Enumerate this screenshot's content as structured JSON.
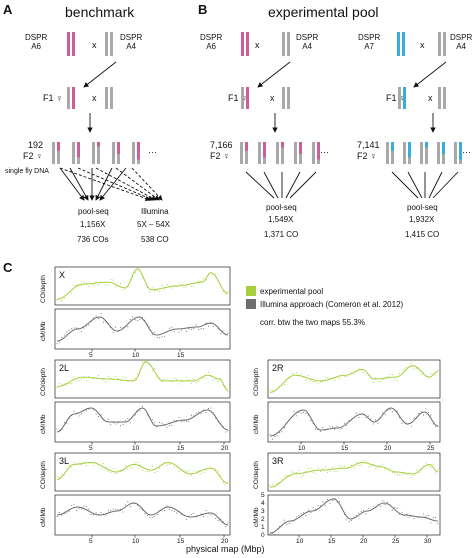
{
  "colors": {
    "dspr_a6": "#cc5e9a",
    "dspr_a7": "#35aedd",
    "gray": "#a9a9a9",
    "experimental": "#a8cf3c",
    "illumina": "#6d6d6d"
  },
  "panelA": {
    "letter": "A",
    "title": "benchmark",
    "p1": "DSPR\nA6",
    "cross": "x",
    "p2": "DSPR\nA4",
    "f1_label": "F1 ♀",
    "f1_cross": "x",
    "f2_count": "192",
    "f2_label": "F2 ♀",
    "dots": "···",
    "single_fly": "single fly DNA",
    "poolseq": {
      "name": "pool-seq",
      "coverage": "1,156X",
      "cos": "736 COs"
    },
    "illumina": {
      "name": "Illumina",
      "coverage": "5X – 54X",
      "cos": "538 CO"
    }
  },
  "panelB": {
    "letter": "B",
    "title": "experimental pool",
    "left": {
      "p1": "DSPR\nA6",
      "cross": "x",
      "p2": "DSPR\nA4",
      "f1_label": "F1 ♀",
      "f1_cross": "x",
      "f2_count": "7,166",
      "f2_label": "F2 ♀",
      "dots": "···",
      "poolseq": "pool-seq",
      "coverage": "1,549X",
      "cos": "1,371 CO"
    },
    "right": {
      "p1": "DSPR\nA7",
      "cross": "x",
      "p2": "DSPR\nA4",
      "f1_label": "F1 ♀",
      "f1_cross": "x",
      "f2_count": "7,141",
      "f2_label": "F2 ♀",
      "dots": "···",
      "poolseq": "pool-seq",
      "coverage": "1,932X",
      "cos": "1,415 CO"
    }
  },
  "panelC": {
    "letter": "C",
    "legend": {
      "experimental": "experimental pool",
      "illumina": "Illumina approach (Comeron et al. 2012)",
      "corr": "corr. btw the two maps 55.3%"
    },
    "ylab_top": "CO/depth",
    "ylab_bottom": "cM/Mb",
    "xlabel": "physical map (Mbp)",
    "chromosomes": [
      {
        "name": "X",
        "ticks": [
          "5",
          "10",
          "15"
        ],
        "yticks": []
      },
      {
        "name": "2L",
        "ticks": [
          "5",
          "10",
          "15",
          "20"
        ],
        "yticks": []
      },
      {
        "name": "2R",
        "ticks": [
          "10",
          "15",
          "20",
          "25"
        ],
        "yticks": []
      },
      {
        "name": "3L",
        "ticks": [
          "5",
          "10",
          "15",
          "20"
        ],
        "yticks": []
      },
      {
        "name": "3R",
        "ticks": [
          "10",
          "15",
          "20",
          "25",
          "30"
        ],
        "yticks": [
          "5",
          "4",
          "3",
          "2",
          "1",
          "0"
        ]
      }
    ]
  }
}
